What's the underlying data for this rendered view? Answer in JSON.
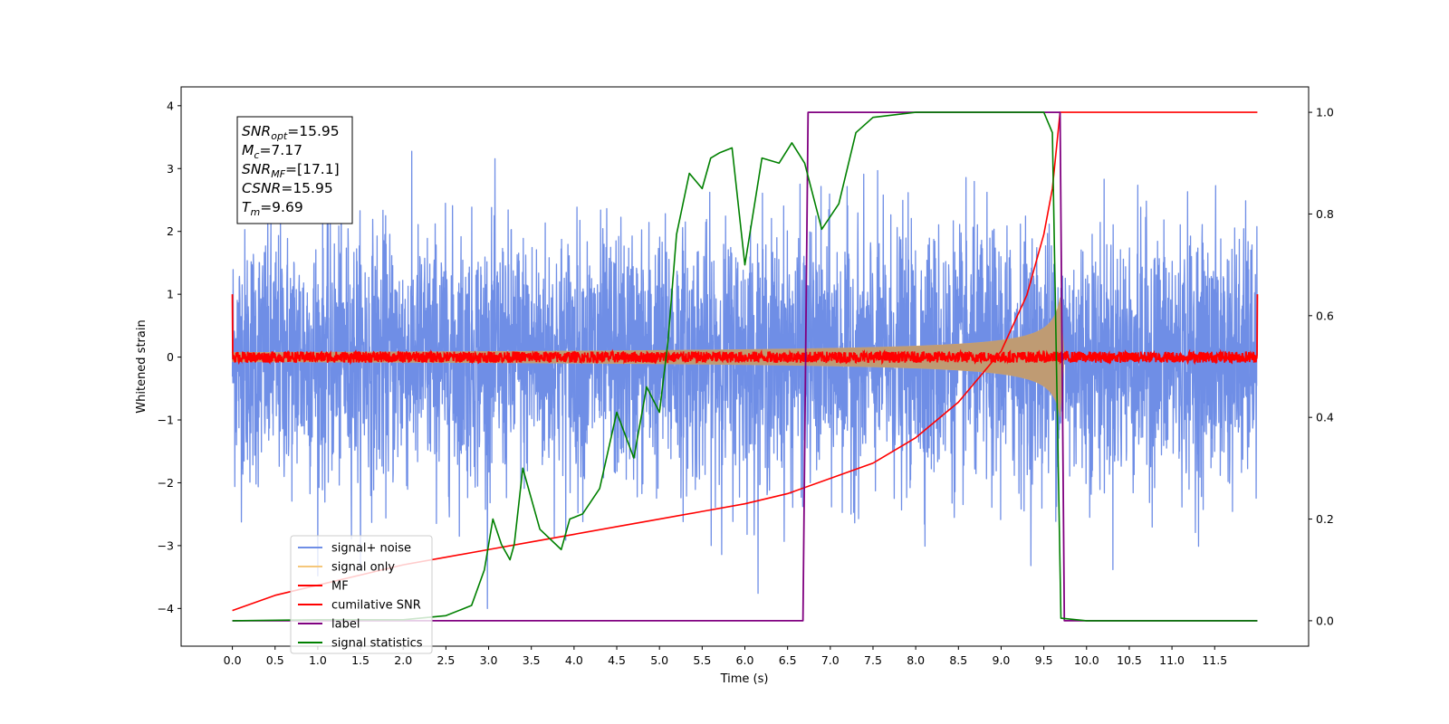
{
  "chart_data": {
    "type": "line",
    "title": "",
    "xlabel": "Time (s)",
    "ylabel": "Whitened strain",
    "xlim": [
      -0.6,
      12.6
    ],
    "ylim": [
      -4.6,
      4.3
    ],
    "y2lim": [
      -0.05,
      1.05
    ],
    "grid": false,
    "legend_position": "lower-left",
    "xticks": [
      0.0,
      0.5,
      1.0,
      1.5,
      2.0,
      2.5,
      3.0,
      3.5,
      4.0,
      4.5,
      5.0,
      5.5,
      6.0,
      6.5,
      7.0,
      7.5,
      8.0,
      8.5,
      9.0,
      9.5,
      10.0,
      10.5,
      11.0,
      11.5
    ],
    "xtick_labels": [
      "0.0",
      "0.5",
      "1.0",
      "1.5",
      "2.0",
      "2.5",
      "3.0",
      "3.5",
      "4.0",
      "4.5",
      "5.0",
      "5.5",
      "6.0",
      "6.5",
      "7.0",
      "7.5",
      "8.0",
      "8.5",
      "9.0",
      "9.5",
      "10.0",
      "10.5",
      "11.0",
      "11.5"
    ],
    "yticks": [
      -4,
      -3,
      -2,
      -1,
      0,
      1,
      2,
      3,
      4
    ],
    "ytick_labels": [
      "−4",
      "−3",
      "−2",
      "−1",
      "0",
      "1",
      "2",
      "3",
      "4"
    ],
    "y2ticks": [
      0.0,
      0.2,
      0.4,
      0.6,
      0.8,
      1.0
    ],
    "y2tick_labels": [
      "0.0",
      "0.2",
      "0.4",
      "0.6",
      "0.8",
      "1.0"
    ],
    "annotation": [
      {
        "base": "SNR",
        "sub": "opt",
        "rest": "=15.95"
      },
      {
        "base": "M",
        "sub": "c",
        "rest": "=7.17"
      },
      {
        "base": "SNR",
        "sub": "MF",
        "rest": "=[17.1]"
      },
      {
        "base": "CSNR",
        "sub": "",
        "rest": "=15.95"
      },
      {
        "base": "T",
        "sub": "m",
        "rest": "=9.69"
      }
    ],
    "series": [
      {
        "name": "signal+ noise",
        "color": "#6f8ee6",
        "axis": "left",
        "kind": "noise",
        "x_range": [
          0.0,
          12.0
        ],
        "std": 1.0,
        "peak_abs": 4.0
      },
      {
        "name": "signal only",
        "color": "#f5c77a",
        "axis": "left",
        "kind": "chirp",
        "merger_time": 9.69,
        "peak_amplitude": 0.95
      },
      {
        "name": "MF",
        "color": "#ff0000",
        "axis": "left",
        "kind": "matched-filter",
        "x_range": [
          0.0,
          12.0
        ],
        "band": 0.15,
        "edge_value": 1.0
      },
      {
        "name": "cumilative SNR",
        "color": "#ff0000",
        "axis": "right",
        "x": [
          0.0,
          0.5,
          1.0,
          1.5,
          2.0,
          2.5,
          3.0,
          3.5,
          4.0,
          4.5,
          5.0,
          5.5,
          6.0,
          6.5,
          7.0,
          7.5,
          8.0,
          8.5,
          9.0,
          9.3,
          9.5,
          9.6,
          9.69,
          12.0
        ],
        "y": [
          0.02,
          0.05,
          0.07,
          0.09,
          0.11,
          0.125,
          0.14,
          0.155,
          0.17,
          0.185,
          0.2,
          0.215,
          0.23,
          0.25,
          0.28,
          0.31,
          0.36,
          0.43,
          0.53,
          0.64,
          0.76,
          0.85,
          1.0,
          1.0
        ]
      },
      {
        "name": "label",
        "color": "#800080",
        "axis": "right",
        "x": [
          0.0,
          6.68,
          6.74,
          9.69,
          9.74,
          12.0
        ],
        "y": [
          0.0,
          0.0,
          1.0,
          1.0,
          0.0,
          0.0
        ]
      },
      {
        "name": "signal statistics",
        "color": "#008000",
        "axis": "right",
        "x": [
          0.0,
          1.0,
          2.0,
          2.5,
          2.8,
          2.95,
          3.05,
          3.15,
          3.25,
          3.3,
          3.4,
          3.6,
          3.85,
          3.95,
          4.1,
          4.3,
          4.5,
          4.7,
          4.85,
          5.0,
          5.1,
          5.2,
          5.35,
          5.5,
          5.6,
          5.7,
          5.85,
          6.0,
          6.2,
          6.4,
          6.55,
          6.7,
          6.9,
          7.1,
          7.3,
          7.5,
          8.0,
          9.0,
          9.5,
          9.6,
          9.7,
          10.0,
          11.0,
          12.0
        ],
        "y": [
          0.0,
          0.002,
          0.002,
          0.01,
          0.03,
          0.1,
          0.2,
          0.15,
          0.12,
          0.15,
          0.3,
          0.18,
          0.14,
          0.2,
          0.21,
          0.26,
          0.41,
          0.32,
          0.46,
          0.41,
          0.55,
          0.76,
          0.88,
          0.85,
          0.91,
          0.92,
          0.93,
          0.7,
          0.91,
          0.9,
          0.94,
          0.9,
          0.77,
          0.82,
          0.96,
          0.99,
          1.0,
          1.0,
          1.0,
          0.96,
          0.005,
          0.0,
          0.0,
          0.0
        ]
      }
    ]
  }
}
